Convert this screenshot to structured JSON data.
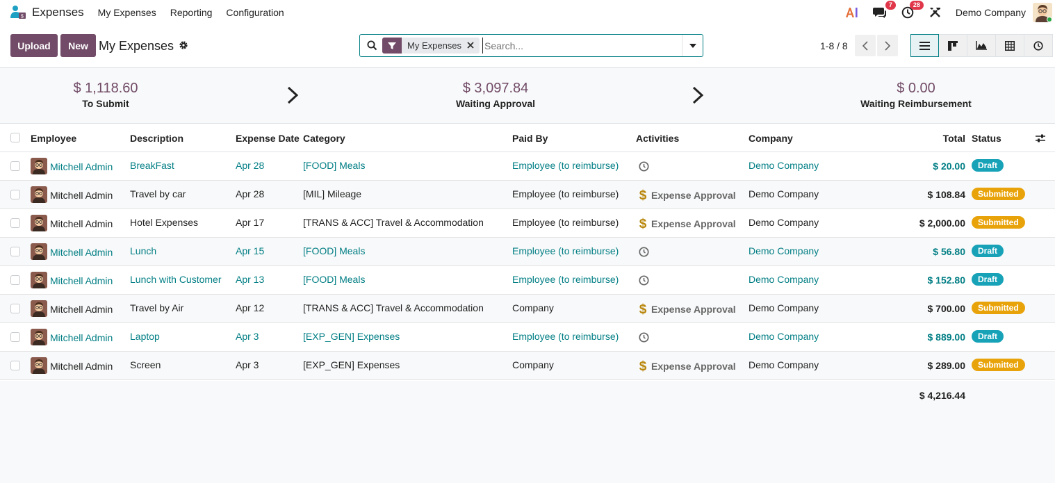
{
  "nav": {
    "app_title": "Expenses",
    "menu": [
      "My Expenses",
      "Reporting",
      "Configuration"
    ],
    "messages_count": "7",
    "activities_count": "28",
    "company": "Demo Company"
  },
  "control": {
    "upload_label": "Upload",
    "new_label": "New",
    "title": "My Expenses",
    "facet_label": "My Expenses",
    "search_placeholder": "Search...",
    "pager": "1-8 / 8"
  },
  "summary": {
    "to_submit": {
      "amount": "$ 1,118.60",
      "label": "To Submit"
    },
    "waiting_approval": {
      "amount": "$ 3,097.84",
      "label": "Waiting Approval"
    },
    "waiting_reimbursement": {
      "amount": "$ 0.00",
      "label": "Waiting Reimbursement"
    }
  },
  "table": {
    "headers": {
      "employee": "Employee",
      "description": "Description",
      "expense_date": "Expense Date",
      "category": "Category",
      "paid_by": "Paid By",
      "activities": "Activities",
      "company": "Company",
      "total": "Total",
      "status": "Status"
    },
    "rows": [
      {
        "employee": "Mitchell Admin",
        "description": "BreakFast",
        "date": "Apr 28",
        "category": "[FOOD] Meals",
        "paid_by": "Employee (to reimburse)",
        "activity": "",
        "company": "Demo Company",
        "total": "$ 20.00",
        "status": "Draft"
      },
      {
        "employee": "Mitchell Admin",
        "description": "Travel by car",
        "date": "Apr 28",
        "category": "[MIL] Mileage",
        "paid_by": "Employee (to reimburse)",
        "activity": "Expense Approval",
        "company": "Demo Company",
        "total": "$ 108.84",
        "status": "Submitted"
      },
      {
        "employee": "Mitchell Admin",
        "description": "Hotel Expenses",
        "date": "Apr 17",
        "category": "[TRANS & ACC] Travel & Accommodation",
        "paid_by": "Employee (to reimburse)",
        "activity": "Expense Approval",
        "company": "Demo Company",
        "total": "$ 2,000.00",
        "status": "Submitted"
      },
      {
        "employee": "Mitchell Admin",
        "description": "Lunch",
        "date": "Apr 15",
        "category": "[FOOD] Meals",
        "paid_by": "Employee (to reimburse)",
        "activity": "",
        "company": "Demo Company",
        "total": "$ 56.80",
        "status": "Draft"
      },
      {
        "employee": "Mitchell Admin",
        "description": "Lunch with Customer",
        "date": "Apr 13",
        "category": "[FOOD] Meals",
        "paid_by": "Employee (to reimburse)",
        "activity": "",
        "company": "Demo Company",
        "total": "$ 152.80",
        "status": "Draft"
      },
      {
        "employee": "Mitchell Admin",
        "description": "Travel by Air",
        "date": "Apr 12",
        "category": "[TRANS & ACC] Travel & Accommodation",
        "paid_by": "Company",
        "activity": "Expense Approval",
        "company": "Demo Company",
        "total": "$ 700.00",
        "status": "Submitted"
      },
      {
        "employee": "Mitchell Admin",
        "description": "Laptop",
        "date": "Apr 3",
        "category": "[EXP_GEN] Expenses",
        "paid_by": "Employee (to reimburse)",
        "activity": "",
        "company": "Demo Company",
        "total": "$ 889.00",
        "status": "Draft"
      },
      {
        "employee": "Mitchell Admin",
        "description": "Screen",
        "date": "Apr 3",
        "category": "[EXP_GEN] Expenses",
        "paid_by": "Company",
        "activity": "Expense Approval",
        "company": "Demo Company",
        "total": "$ 289.00",
        "status": "Submitted"
      }
    ],
    "grand_total": "$ 4,216.44"
  },
  "colors": {
    "primary": "#714b67",
    "link": "#017e84",
    "draft": "#17a2b8",
    "submitted": "#e9a30a",
    "badge": "#e0374a"
  }
}
